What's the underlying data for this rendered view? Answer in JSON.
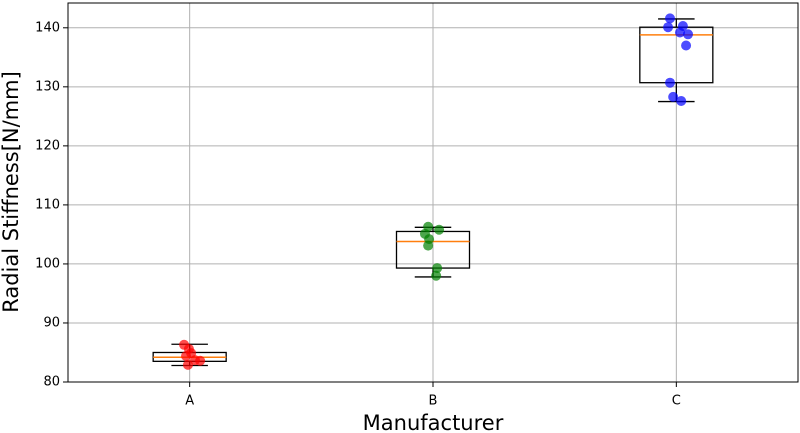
{
  "chart_data": {
    "type": "box",
    "xlabel": "Manufacturer",
    "ylabel": "Radial Stiffness[N/mm]",
    "categories": [
      "A",
      "B",
      "C"
    ],
    "xlim": [
      0.5,
      3.5
    ],
    "ylim": [
      80,
      144.2
    ],
    "yticks": [
      80,
      90,
      100,
      110,
      120,
      130,
      140
    ],
    "grid": true,
    "boxes": [
      {
        "whislo": 82.8,
        "q1": 83.5,
        "med": 84.2,
        "q3": 85.0,
        "whishi": 86.4,
        "color": "#ff0000",
        "points_x": [
          0.977,
          0.997,
          1.006,
          0.985,
          1.043,
          0.993,
          1.022
        ],
        "points_y": [
          86.3,
          85.6,
          84.9,
          84.4,
          83.6,
          82.9,
          83.7
        ]
      },
      {
        "whislo": 97.8,
        "q1": 99.3,
        "med": 103.8,
        "q3": 105.5,
        "whishi": 106.2,
        "color": "#008000",
        "points_x": [
          1.98,
          2.025,
          1.967,
          1.984,
          1.98,
          2.017,
          2.013
        ],
        "points_y": [
          106.3,
          105.8,
          105.1,
          104.2,
          103.1,
          99.3,
          98.0
        ]
      },
      {
        "whislo": 127.5,
        "q1": 130.7,
        "med": 138.8,
        "q3": 140.1,
        "whishi": 141.5,
        "color": "#0000ff",
        "points_x": [
          2.974,
          2.966,
          3.027,
          3.015,
          3.048,
          3.04,
          2.974,
          2.987,
          3.02
        ],
        "points_y": [
          141.6,
          140.1,
          140.3,
          139.2,
          138.9,
          137.0,
          130.7,
          128.3,
          127.6
        ]
      }
    ]
  }
}
